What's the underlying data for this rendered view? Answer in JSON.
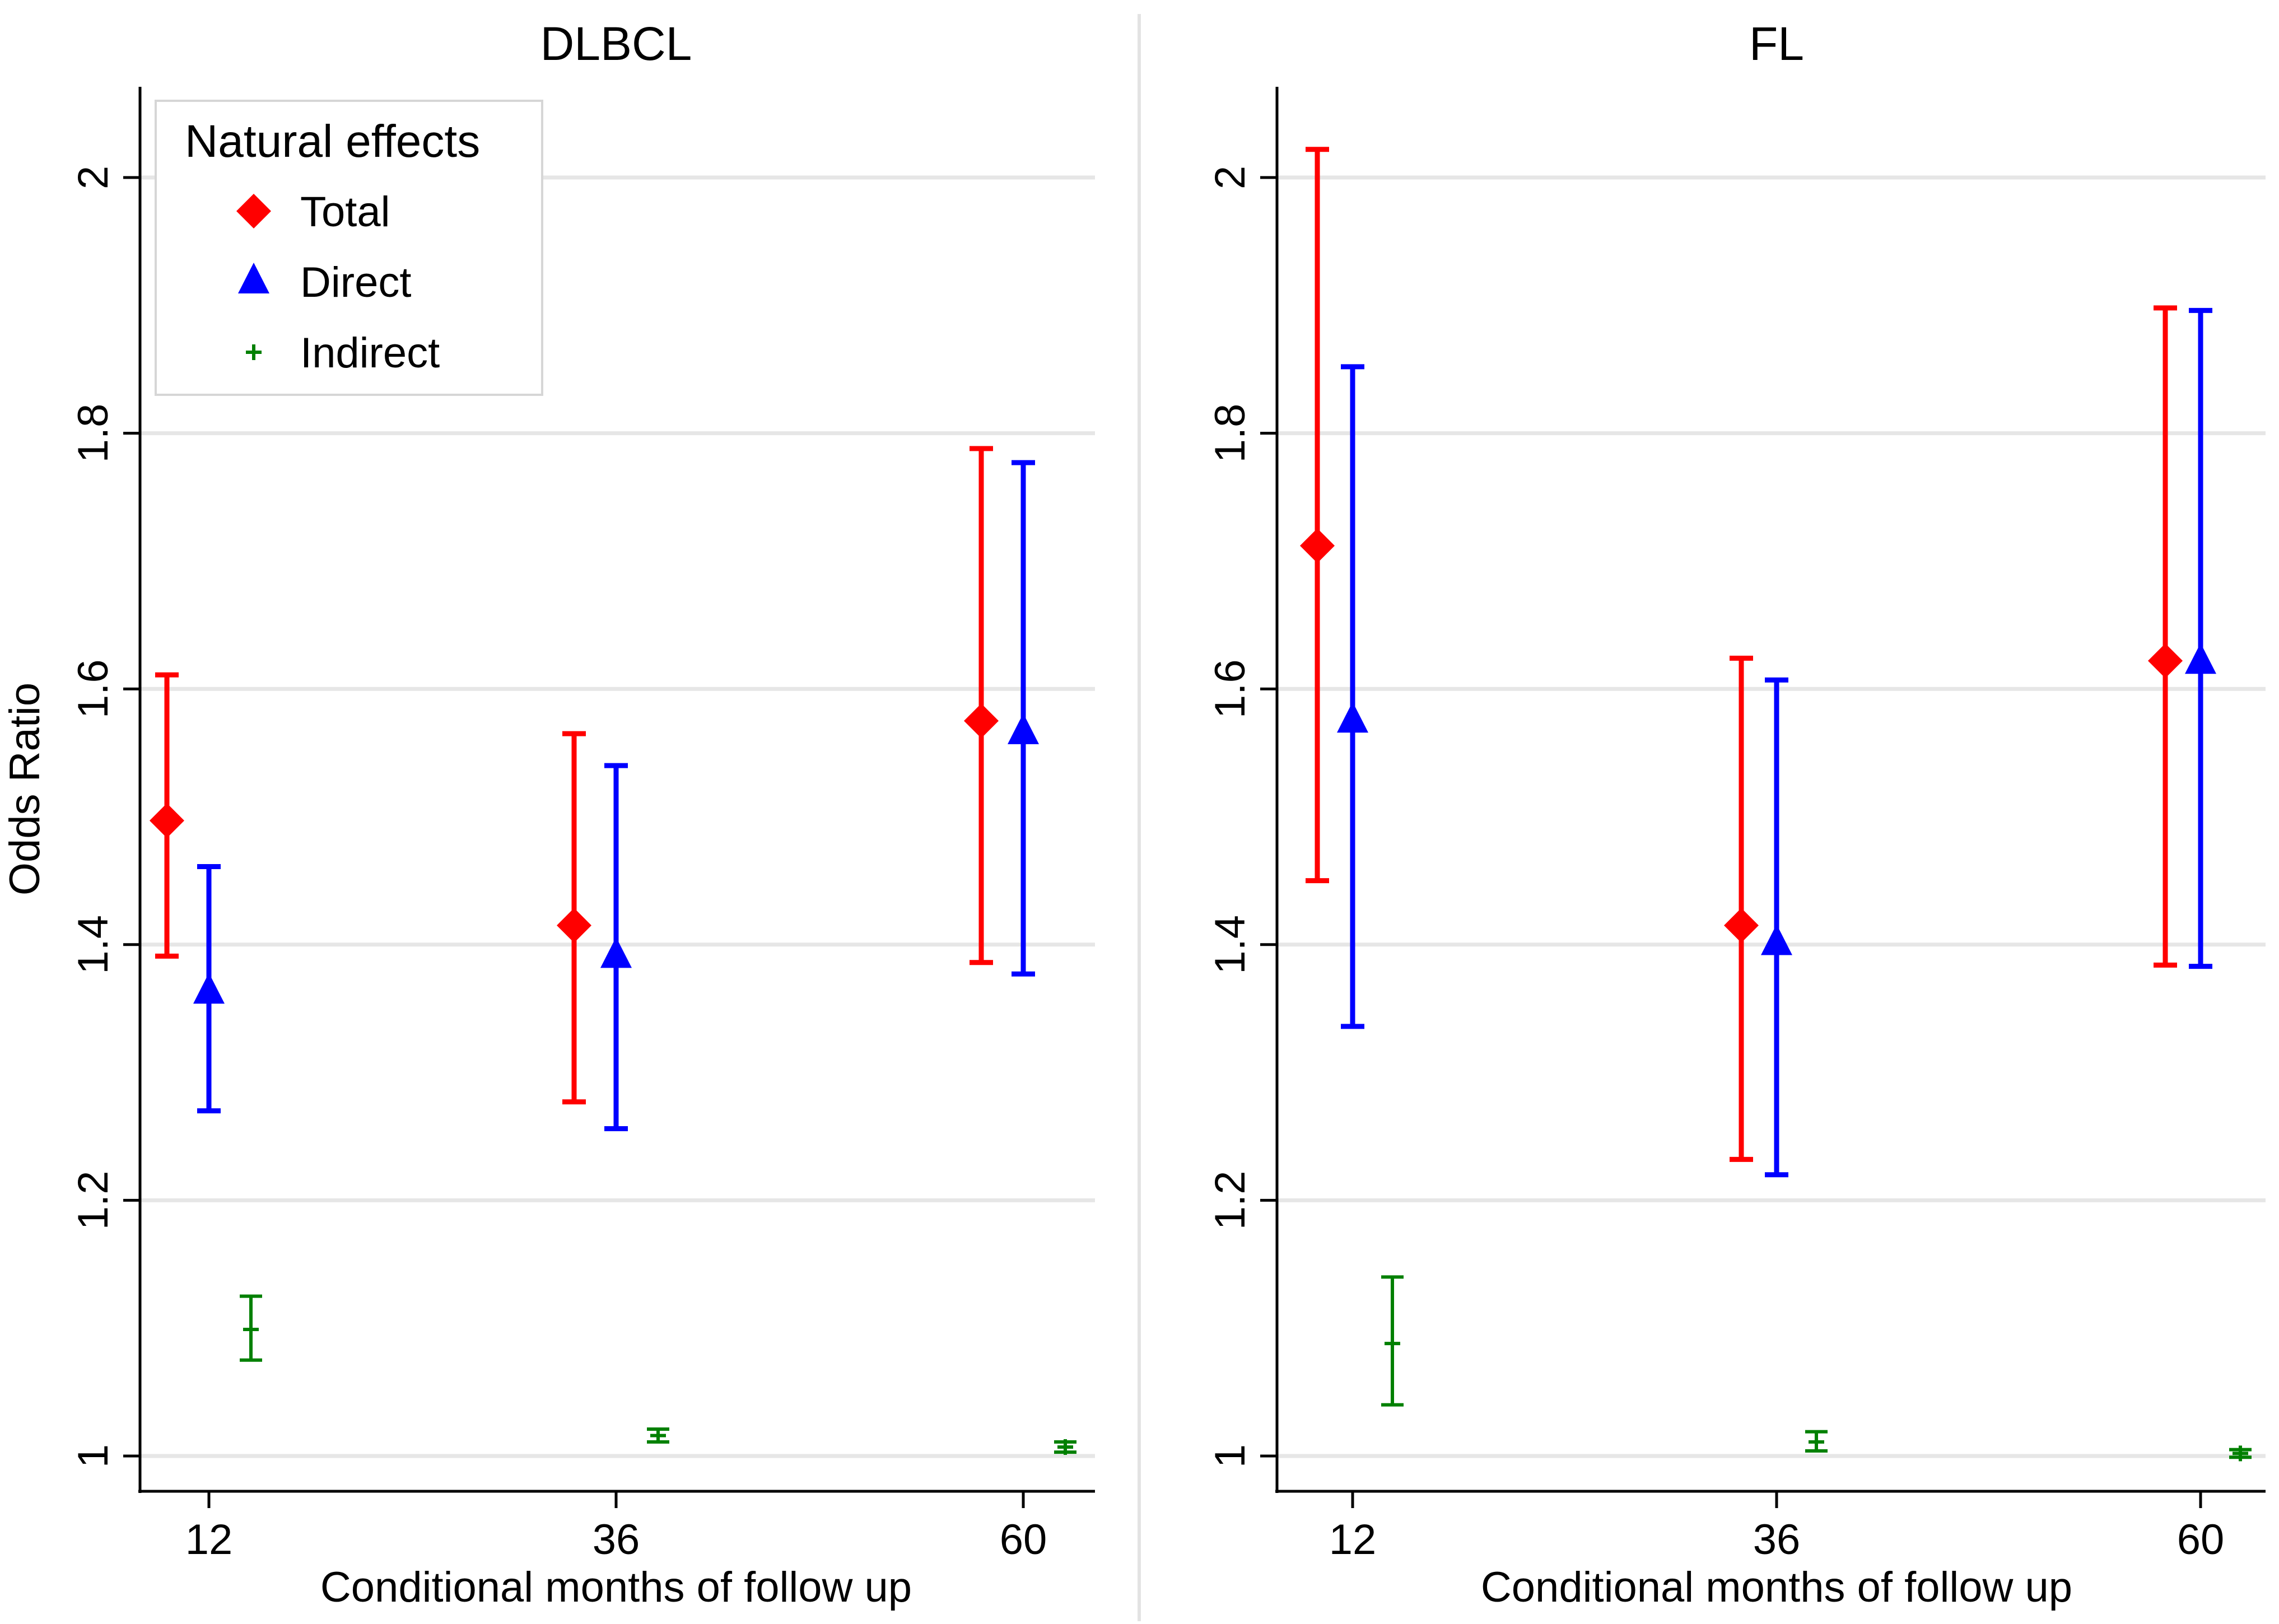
{
  "chart_data": [
    {
      "type": "scatter",
      "title": "DLBCL",
      "xlabel": "Conditional months of follow up",
      "ylabel": "Odds Ratio",
      "categories": [
        "12",
        "36",
        "60"
      ],
      "yticks": [
        "1",
        "1.2",
        "1.4",
        "1.6",
        "1.8",
        "2"
      ],
      "ylim": [
        0.97,
        2.07
      ],
      "grid": true,
      "legend": {
        "title": "Natural effects",
        "placement": "top-left",
        "entries": [
          "Total",
          "Direct",
          "Indirect"
        ]
      },
      "series": [
        {
          "name": "Total",
          "marker": "diamond",
          "color": "#ff0000",
          "estimate": [
            1.497,
            1.415,
            1.575
          ],
          "lower": [
            1.391,
            1.277,
            1.386
          ],
          "upper": [
            1.611,
            1.565,
            1.788
          ]
        },
        {
          "name": "Direct",
          "marker": "triangle",
          "color": "#0000ff",
          "estimate": [
            1.363,
            1.391,
            1.566
          ],
          "lower": [
            1.27,
            1.256,
            1.377
          ],
          "upper": [
            1.461,
            1.54,
            1.777
          ]
        },
        {
          "name": "Indirect",
          "marker": "plus",
          "color": "#008000",
          "estimate": [
            1.099,
            1.016,
            1.007
          ],
          "lower": [
            1.075,
            1.011,
            1.003
          ],
          "upper": [
            1.125,
            1.021,
            1.011
          ]
        }
      ]
    },
    {
      "type": "scatter",
      "title": "FL",
      "xlabel": "Conditional months of follow up",
      "ylabel": "",
      "categories": [
        "12",
        "36",
        "60"
      ],
      "yticks": [
        "1",
        "1.2",
        "1.4",
        "1.6",
        "1.8",
        "2"
      ],
      "ylim": [
        0.97,
        2.07
      ],
      "grid": true,
      "series": [
        {
          "name": "Total",
          "marker": "diamond",
          "color": "#ff0000",
          "estimate": [
            1.712,
            1.415,
            1.622
          ],
          "lower": [
            1.45,
            1.232,
            1.384
          ],
          "upper": [
            2.022,
            1.624,
            1.898
          ]
        },
        {
          "name": "Direct",
          "marker": "triangle",
          "color": "#0000ff",
          "estimate": [
            1.575,
            1.401,
            1.621
          ],
          "lower": [
            1.336,
            1.22,
            1.383
          ],
          "upper": [
            1.852,
            1.607,
            1.896
          ]
        },
        {
          "name": "Indirect",
          "marker": "plus",
          "color": "#008000",
          "estimate": [
            1.088,
            1.011,
            1.002
          ],
          "lower": [
            1.04,
            1.004,
            0.999
          ],
          "upper": [
            1.14,
            1.019,
            1.005
          ]
        }
      ]
    }
  ]
}
